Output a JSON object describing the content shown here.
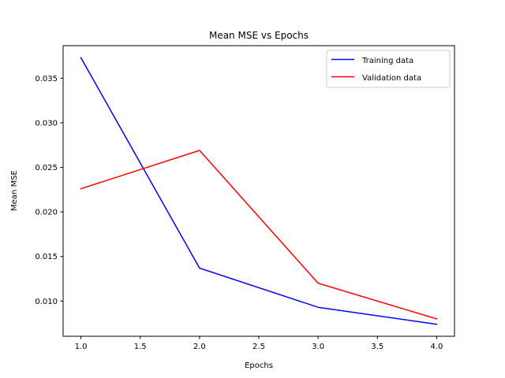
{
  "chart_data": {
    "type": "line",
    "title": "Mean MSE vs Epochs",
    "xlabel": "Epochs",
    "ylabel": "Mean MSE",
    "xlim": [
      0.85,
      4.15
    ],
    "ylim": [
      0.00605,
      0.03865
    ],
    "x_ticks": [
      1.0,
      1.5,
      2.0,
      2.5,
      3.0,
      3.5,
      4.0
    ],
    "x_tick_labels": [
      "1.0",
      "1.5",
      "2.0",
      "2.5",
      "3.0",
      "3.5",
      "4.0"
    ],
    "y_ticks": [
      0.01,
      0.015,
      0.02,
      0.025,
      0.03,
      0.035
    ],
    "y_tick_labels": [
      "0.010",
      "0.015",
      "0.020",
      "0.025",
      "0.030",
      "0.035"
    ],
    "grid": false,
    "legend_position": "top-right",
    "series": [
      {
        "name": "Training data",
        "color": "#0000ff",
        "x": [
          1,
          2,
          3,
          4
        ],
        "y": [
          0.0373,
          0.0137,
          0.0093,
          0.0074
        ]
      },
      {
        "name": "Validation data",
        "color": "#ff0000",
        "x": [
          1,
          2,
          3,
          4
        ],
        "y": [
          0.0226,
          0.0269,
          0.012,
          0.008
        ]
      }
    ]
  }
}
